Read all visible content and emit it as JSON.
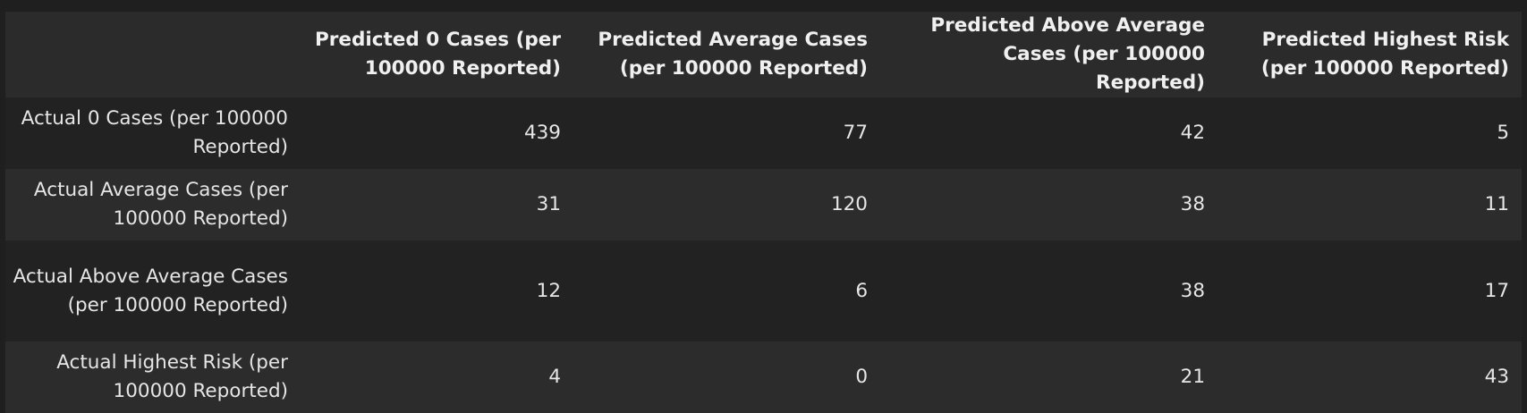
{
  "table": {
    "corner": "",
    "columns": [
      "Predicted 0 Cases (per 100000 Reported)",
      "Predicted Average Cases (per 100000 Reported)",
      "Predicted Above Average Cases (per 100000 Reported)",
      "Predicted Highest Risk (per 100000 Reported)"
    ],
    "rows": [
      {
        "label": "Actual 0 Cases (per 100000 Reported)",
        "values": [
          "439",
          "77",
          "42",
          "5"
        ]
      },
      {
        "label": "Actual Average Cases (per 100000 Reported)",
        "values": [
          "31",
          "120",
          "38",
          "11"
        ]
      },
      {
        "label": "Actual Above Average Cases (per 100000 Reported)",
        "values": [
          "12",
          "6",
          "38",
          "17"
        ]
      },
      {
        "label": "Actual Highest Risk (per 100000 Reported)",
        "values": [
          "4",
          "0",
          "21",
          "43"
        ]
      }
    ]
  }
}
